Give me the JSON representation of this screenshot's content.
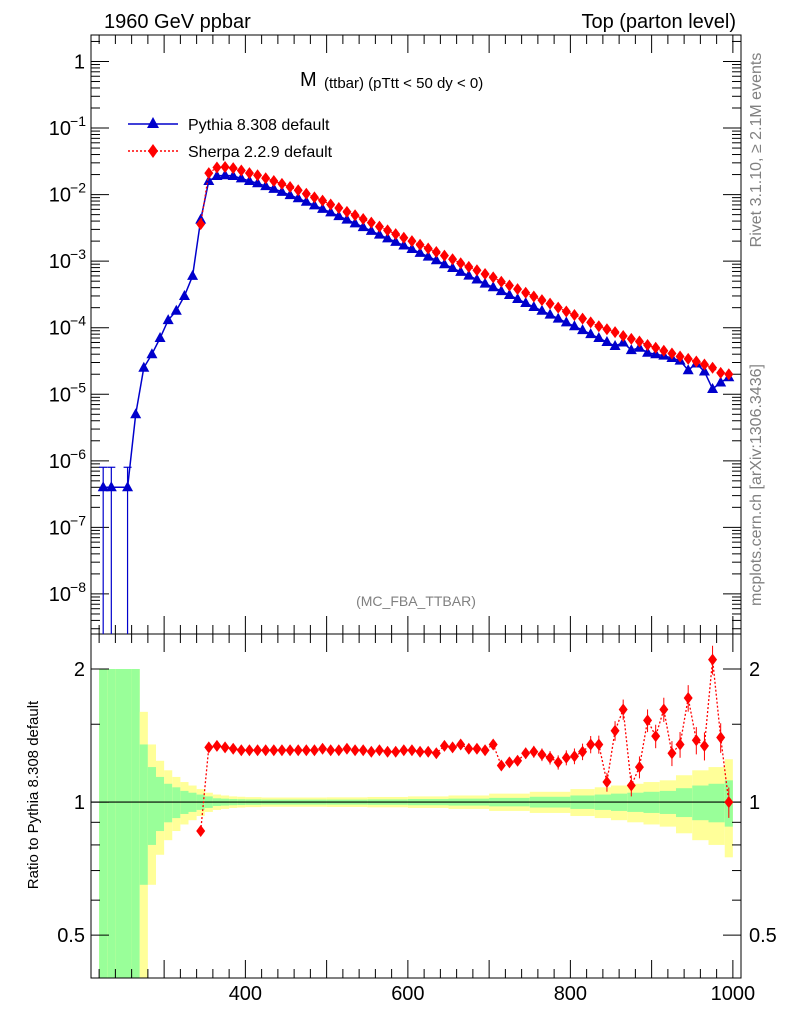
{
  "header": {
    "left": "1960 GeV ppbar",
    "right": "Top (parton level)"
  },
  "side_text": {
    "rivet": "Rivet 3.1.10, ≥ 2.1M events",
    "mcplots": "mcplots.cern.ch [arXiv:1306.3436]"
  },
  "plot": {
    "title_main": "M",
    "title_sub": "(ttbar) (pTtt < 50 dy < 0)",
    "analysis": "(MC_FBA_TTBAR)",
    "ratio_ylabel": "Ratio to Pythia 8.308 default"
  },
  "colors": {
    "pythia": "#0000cc",
    "sherpa": "#ff0000",
    "band_inner": "#99ff99",
    "band_outer": "#ffff99"
  },
  "chart_data": {
    "type": "line",
    "xlim": [
      210,
      1010
    ],
    "ylim": [
      2.5e-09,
      2.5
    ],
    "yscale": "log",
    "ratio_ylim": [
      0.4,
      2.4
    ],
    "x_ticks": [
      400,
      600,
      800,
      1000
    ],
    "y_tick_labels": [
      "1",
      "10^-1",
      "10^-2",
      "10^-3",
      "10^-4",
      "10^-5",
      "10^-6",
      "10^-7",
      "10^-8"
    ],
    "ratio_tick_labels": [
      "0.5",
      "1",
      "2"
    ],
    "legend_position": "top-left",
    "series": [
      {
        "name": "Pythia 8.308 default",
        "marker": "triangle",
        "x": [
          225,
          235,
          255,
          265,
          275,
          285,
          295,
          305,
          315,
          325,
          335,
          345,
          355,
          365,
          375,
          385,
          395,
          405,
          415,
          425,
          435,
          445,
          455,
          465,
          475,
          485,
          495,
          505,
          515,
          525,
          535,
          545,
          555,
          565,
          575,
          585,
          595,
          605,
          615,
          625,
          635,
          645,
          655,
          665,
          675,
          685,
          695,
          705,
          715,
          725,
          735,
          745,
          755,
          765,
          775,
          785,
          795,
          805,
          815,
          825,
          835,
          845,
          855,
          865,
          875,
          885,
          895,
          905,
          915,
          925,
          935,
          945,
          955,
          965,
          975,
          985,
          995
        ],
        "y": [
          4e-07,
          4e-07,
          4e-07,
          5e-06,
          2.5e-05,
          4e-05,
          7e-05,
          0.00013,
          0.00018,
          0.0003,
          0.0006,
          0.0042,
          0.016,
          0.019,
          0.0195,
          0.019,
          0.0175,
          0.016,
          0.0148,
          0.0134,
          0.0122,
          0.011,
          0.0098,
          0.0088,
          0.0078,
          0.0069,
          0.0061,
          0.0054,
          0.00475,
          0.0042,
          0.0037,
          0.00325,
          0.00285,
          0.0025,
          0.0022,
          0.00195,
          0.00172,
          0.00152,
          0.00133,
          0.00117,
          0.00103,
          0.0009,
          0.00079,
          0.00069,
          0.000605,
          0.00053,
          0.00046,
          0.000405,
          0.000355,
          0.00031,
          0.00027,
          0.000235,
          0.000205,
          0.00018,
          0.000157,
          0.000137,
          0.00012,
          0.000105,
          9.2e-05,
          8e-05,
          7e-05,
          6.1e-05,
          5.3e-05,
          6e-05,
          4.6e-05,
          5e-05,
          4.2e-05,
          4e-05,
          3.8e-05,
          3.5e-05,
          3.2e-05,
          2.3e-05,
          2.9e-05,
          2.2e-05,
          1.2e-05,
          1.5e-05,
          1.8e-05
        ]
      },
      {
        "name": "Sherpa 2.2.9 default",
        "marker": "diamond",
        "x": [
          345,
          355,
          365,
          375,
          385,
          395,
          405,
          415,
          425,
          435,
          445,
          455,
          465,
          475,
          485,
          495,
          505,
          515,
          525,
          535,
          545,
          555,
          565,
          575,
          585,
          595,
          605,
          615,
          625,
          635,
          645,
          655,
          665,
          675,
          685,
          695,
          705,
          715,
          725,
          735,
          745,
          755,
          765,
          775,
          785,
          795,
          805,
          815,
          825,
          835,
          845,
          855,
          865,
          875,
          885,
          895,
          905,
          915,
          925,
          935,
          945,
          955,
          965,
          975,
          985,
          995
        ],
        "y": [
          0.0036,
          0.021,
          0.0255,
          0.026,
          0.025,
          0.023,
          0.021,
          0.0195,
          0.0176,
          0.016,
          0.0145,
          0.013,
          0.0116,
          0.0103,
          0.0091,
          0.0081,
          0.0071,
          0.0063,
          0.0055,
          0.0049,
          0.0043,
          0.0038,
          0.0033,
          0.0029,
          0.00255,
          0.00225,
          0.002,
          0.00176,
          0.00155,
          0.00137,
          0.00121,
          0.00107,
          0.00093,
          0.00082,
          0.00073,
          0.00064,
          0.00057,
          0.00049,
          0.00043,
          0.00038,
          0.000335,
          0.000295,
          0.00026,
          0.00023,
          0.0002,
          0.000175,
          0.000155,
          0.000137,
          0.00012,
          0.000105,
          9.5e-05,
          8.6e-05,
          7.5e-05,
          6.8e-05,
          6.2e-05,
          5.5e-05,
          5e-05,
          4.5e-05,
          4.1e-05,
          3.7e-05,
          3.4e-05,
          3.1e-05,
          2.8e-05,
          2.5e-05,
          2.1e-05,
          2e-05
        ]
      }
    ],
    "ratio": {
      "x": [
        345,
        355,
        365,
        375,
        385,
        395,
        405,
        415,
        425,
        435,
        445,
        455,
        465,
        475,
        485,
        495,
        505,
        515,
        525,
        535,
        545,
        555,
        565,
        575,
        585,
        595,
        605,
        615,
        625,
        635,
        645,
        655,
        665,
        675,
        685,
        695,
        705,
        715,
        725,
        735,
        745,
        755,
        765,
        775,
        785,
        795,
        805,
        815,
        825,
        835,
        845,
        855,
        865,
        875,
        885,
        895,
        905,
        915,
        925,
        935,
        945,
        955,
        965,
        975,
        985,
        995
      ],
      "y": [
        0.86,
        1.33,
        1.34,
        1.33,
        1.32,
        1.31,
        1.31,
        1.31,
        1.31,
        1.31,
        1.31,
        1.31,
        1.31,
        1.31,
        1.31,
        1.32,
        1.31,
        1.31,
        1.32,
        1.31,
        1.31,
        1.3,
        1.31,
        1.3,
        1.3,
        1.31,
        1.31,
        1.3,
        1.3,
        1.29,
        1.34,
        1.33,
        1.35,
        1.32,
        1.32,
        1.31,
        1.35,
        1.21,
        1.23,
        1.24,
        1.29,
        1.3,
        1.28,
        1.26,
        1.23,
        1.26,
        1.27,
        1.3,
        1.35,
        1.35,
        1.11,
        1.45,
        1.62,
        1.09,
        1.2,
        1.53,
        1.41,
        1.62,
        1.29,
        1.35,
        1.72,
        1.38,
        1.34,
        2.1,
        1.4,
        1.0
      ]
    },
    "uncertainty_band": {
      "x_edges": [
        220,
        230,
        240,
        250,
        260,
        270,
        280,
        290,
        300,
        310,
        320,
        330,
        340,
        350,
        360,
        370,
        380,
        390,
        400,
        420,
        450,
        500,
        550,
        600,
        650,
        700,
        750,
        800,
        830,
        850,
        870,
        890,
        910,
        930,
        950,
        970,
        990,
        1000
      ],
      "inner_half_width": [
        1,
        1,
        1,
        1,
        1,
        0.35,
        0.2,
        0.14,
        0.1,
        0.08,
        0.06,
        0.05,
        0.04,
        0.03,
        0.02,
        0.018,
        0.016,
        0.015,
        0.014,
        0.013,
        0.013,
        0.013,
        0.014,
        0.016,
        0.018,
        0.022,
        0.028,
        0.035,
        0.04,
        0.045,
        0.05,
        0.055,
        0.06,
        0.075,
        0.09,
        0.1,
        0.12
      ],
      "outer_half_width": [
        1,
        1,
        1,
        1,
        1,
        0.6,
        0.35,
        0.24,
        0.18,
        0.14,
        0.11,
        0.09,
        0.07,
        0.05,
        0.04,
        0.035,
        0.03,
        0.028,
        0.026,
        0.024,
        0.024,
        0.025,
        0.027,
        0.03,
        0.035,
        0.045,
        0.055,
        0.07,
        0.08,
        0.09,
        0.1,
        0.11,
        0.12,
        0.15,
        0.18,
        0.2,
        0.25
      ]
    }
  }
}
